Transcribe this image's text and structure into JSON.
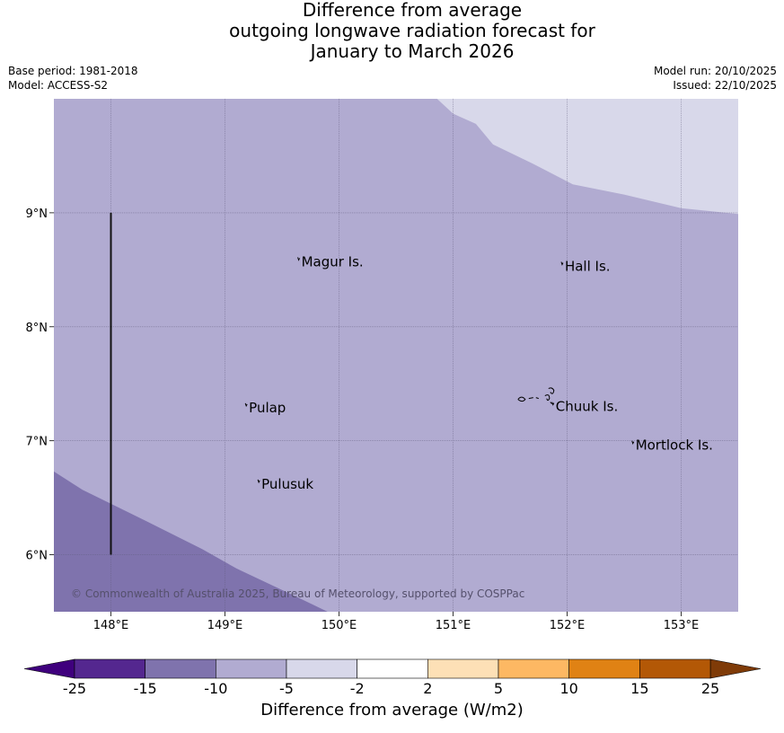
{
  "chart_data": {
    "type": "heatmap",
    "title": [
      "Difference from average",
      "outgoing longwave radiation forecast for",
      "January to March 2026"
    ],
    "base_period": "Base period: 1981-2018",
    "model": "Model: ACCESS-S2",
    "model_run": "Model run: 20/10/2025",
    "issued": "Issued: 22/10/2025",
    "xlim": [
      147.5,
      153.5
    ],
    "ylim": [
      5.5,
      10.0
    ],
    "x_ticks": [
      148,
      149,
      150,
      151,
      152,
      153
    ],
    "x_tick_labels": [
      "148°E",
      "149°E",
      "150°E",
      "151°E",
      "152°E",
      "153°E"
    ],
    "y_ticks": [
      6,
      7,
      8,
      9
    ],
    "y_tick_labels": [
      "6°N",
      "7°N",
      "8°N",
      "9°N"
    ],
    "regions": [
      {
        "name": "-15 to -10",
        "color": "#7f73ad",
        "polygon": [
          [
            147.5,
            6.23
          ],
          [
            147.5,
            5.5
          ],
          [
            149.9,
            5.5
          ],
          [
            149.65,
            5.62
          ],
          [
            149.1,
            5.88
          ],
          [
            148.8,
            6.05
          ],
          [
            148.3,
            6.3
          ],
          [
            147.75,
            6.57
          ],
          [
            147.5,
            6.73
          ]
        ]
      },
      {
        "name": "-5 to -2",
        "color": "#d8d8ea",
        "polygon": [
          [
            151.39,
            10.0
          ],
          [
            153.5,
            10.0
          ],
          [
            153.5,
            8.99
          ],
          [
            153.0,
            9.04
          ],
          [
            152.5,
            9.16
          ],
          [
            152.05,
            9.25
          ],
          [
            151.7,
            9.43
          ],
          [
            151.35,
            9.6
          ],
          [
            151.2,
            9.78
          ],
          [
            151.0,
            9.87
          ],
          [
            150.86,
            10.0
          ]
        ]
      }
    ],
    "background_color": "#b1abd1",
    "islands": [
      {
        "name": "Magur Is.",
        "lon": 149.67,
        "lat": 8.57
      },
      {
        "name": "Hall Is.",
        "lon": 151.98,
        "lat": 8.53
      },
      {
        "name": "Pulap",
        "lon": 149.21,
        "lat": 7.29
      },
      {
        "name": "Chuuk Is.",
        "lon": 151.9,
        "lat": 7.3
      },
      {
        "name": "Mortlock Is.",
        "lon": 152.6,
        "lat": 6.96
      },
      {
        "name": "Pulusuk",
        "lon": 149.32,
        "lat": 6.62
      }
    ],
    "reference_line": {
      "lon": 148.0,
      "lat_from": 6.0,
      "lat_to": 9.0
    },
    "copyright": "© Commonwealth of Australia 2025, Bureau of Meteorology, supported by COSPPac",
    "colorbar": {
      "label": "Difference from average (W/m2)",
      "ticks": [
        "-25",
        "-15",
        "-10",
        "-5",
        "-2",
        "2",
        "5",
        "10",
        "15",
        "25"
      ],
      "colors": [
        "#54278f",
        "#7f73ad",
        "#b1abd1",
        "#d8d8ea",
        "#ffffff",
        "#fde0b6",
        "#fdb863",
        "#e08214",
        "#b35806"
      ],
      "under_color": "#3f007d",
      "over_color": "#7f3b08"
    }
  }
}
